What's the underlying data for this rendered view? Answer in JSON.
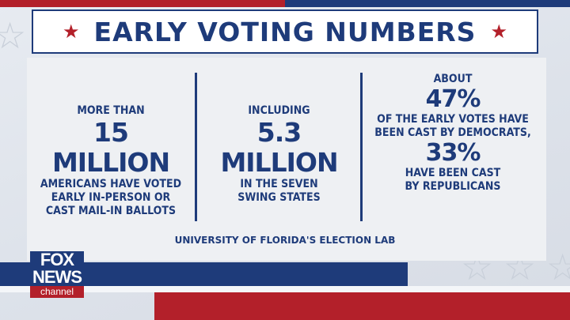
{
  "title": "EARLY VOTING NUMBERS",
  "columns": [
    {
      "top": "MORE THAN",
      "big": "15 MILLION",
      "bottom": [
        "AMERICANS HAVE VOTED",
        "EARLY IN-PERSON OR",
        "CAST MAIL-IN BALLOTS"
      ]
    },
    {
      "top": "INCLUDING",
      "big": "5.3 MILLION",
      "bottom": [
        "IN THE SEVEN",
        "SWING STATES"
      ]
    },
    {
      "top": "ABOUT",
      "big1": "47%",
      "mid": [
        "OF THE EARLY VOTES HAVE",
        "BEEN CAST BY DEMOCRATS,"
      ],
      "big2": "33%",
      "bottom": [
        "HAVE BEEN CAST",
        "BY REPUBLICANS"
      ]
    }
  ],
  "source": "UNIVERSITY OF FLORIDA'S ELECTION LAB",
  "logo": {
    "line1": "FOX",
    "line2": "NEWS",
    "line3": "channel"
  },
  "colors": {
    "navy": "#1e3b7a",
    "red": "#b3202a",
    "panel": "#eef0f3"
  },
  "icons": [
    "star-icon"
  ]
}
